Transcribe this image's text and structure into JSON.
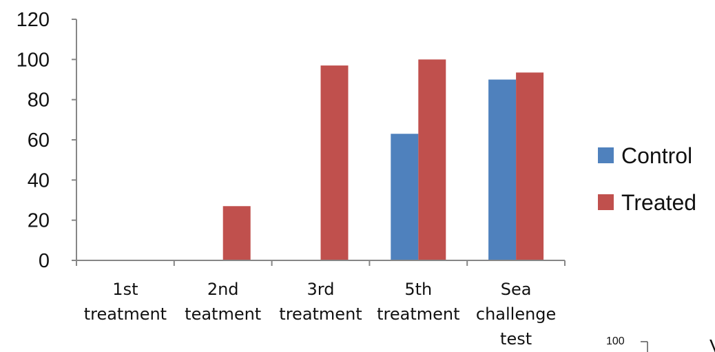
{
  "chart_data": {
    "type": "bar",
    "categories": [
      [
        "1st",
        "treatment"
      ],
      [
        "2nd",
        "teatment"
      ],
      [
        "3rd",
        "treatment"
      ],
      [
        "5th",
        "treatment"
      ],
      [
        "Sea",
        "challenge",
        "test"
      ]
    ],
    "series": [
      {
        "name": "Control",
        "color": "#4f81bd",
        "values": [
          0,
          0,
          0,
          63,
          90
        ]
      },
      {
        "name": "Treated",
        "color": "#c0504d",
        "values": [
          0,
          27,
          97,
          100,
          93.5
        ]
      }
    ],
    "yticks": [
      "0",
      "20",
      "40",
      "60",
      "80",
      "100",
      "120"
    ],
    "ylim": [
      0,
      120
    ],
    "grid": false,
    "legend_position": "right",
    "title": "",
    "xlabel": "",
    "ylabel": ""
  },
  "fragment": {
    "tick_label": "100",
    "partial_glyph": "V"
  }
}
